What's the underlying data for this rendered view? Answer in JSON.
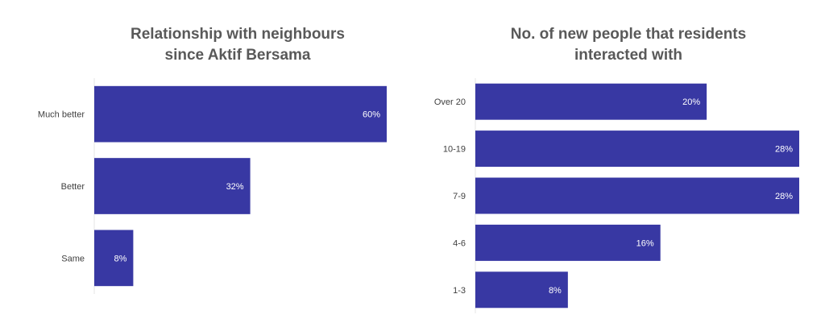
{
  "chart_data": [
    {
      "type": "bar",
      "orientation": "horizontal",
      "title": "Relationship with neighbours\nsince Aktif Bersama",
      "categories": [
        "Much better",
        "Better",
        "Same"
      ],
      "values": [
        60,
        32,
        8
      ],
      "value_labels": [
        "60%",
        "32%",
        "8%"
      ],
      "xlim": [
        0,
        60
      ],
      "grid": false,
      "legend": "none",
      "colors": {
        "bar": "#3838A3",
        "label": "#ffffff",
        "axis_text": "#404040"
      }
    },
    {
      "type": "bar",
      "orientation": "horizontal",
      "title": "No. of new people that residents\ninteracted with",
      "categories": [
        "Over 20",
        "10-19",
        "7-9",
        "4-6",
        "1-3"
      ],
      "values": [
        20,
        28,
        28,
        16,
        8
      ],
      "value_labels": [
        "20%",
        "28%",
        "28%",
        "16%",
        "8%"
      ],
      "xlim": [
        0,
        28
      ],
      "grid": false,
      "legend": "none",
      "colors": {
        "bar": "#3838A3",
        "label": "#ffffff",
        "axis_text": "#404040"
      }
    }
  ]
}
